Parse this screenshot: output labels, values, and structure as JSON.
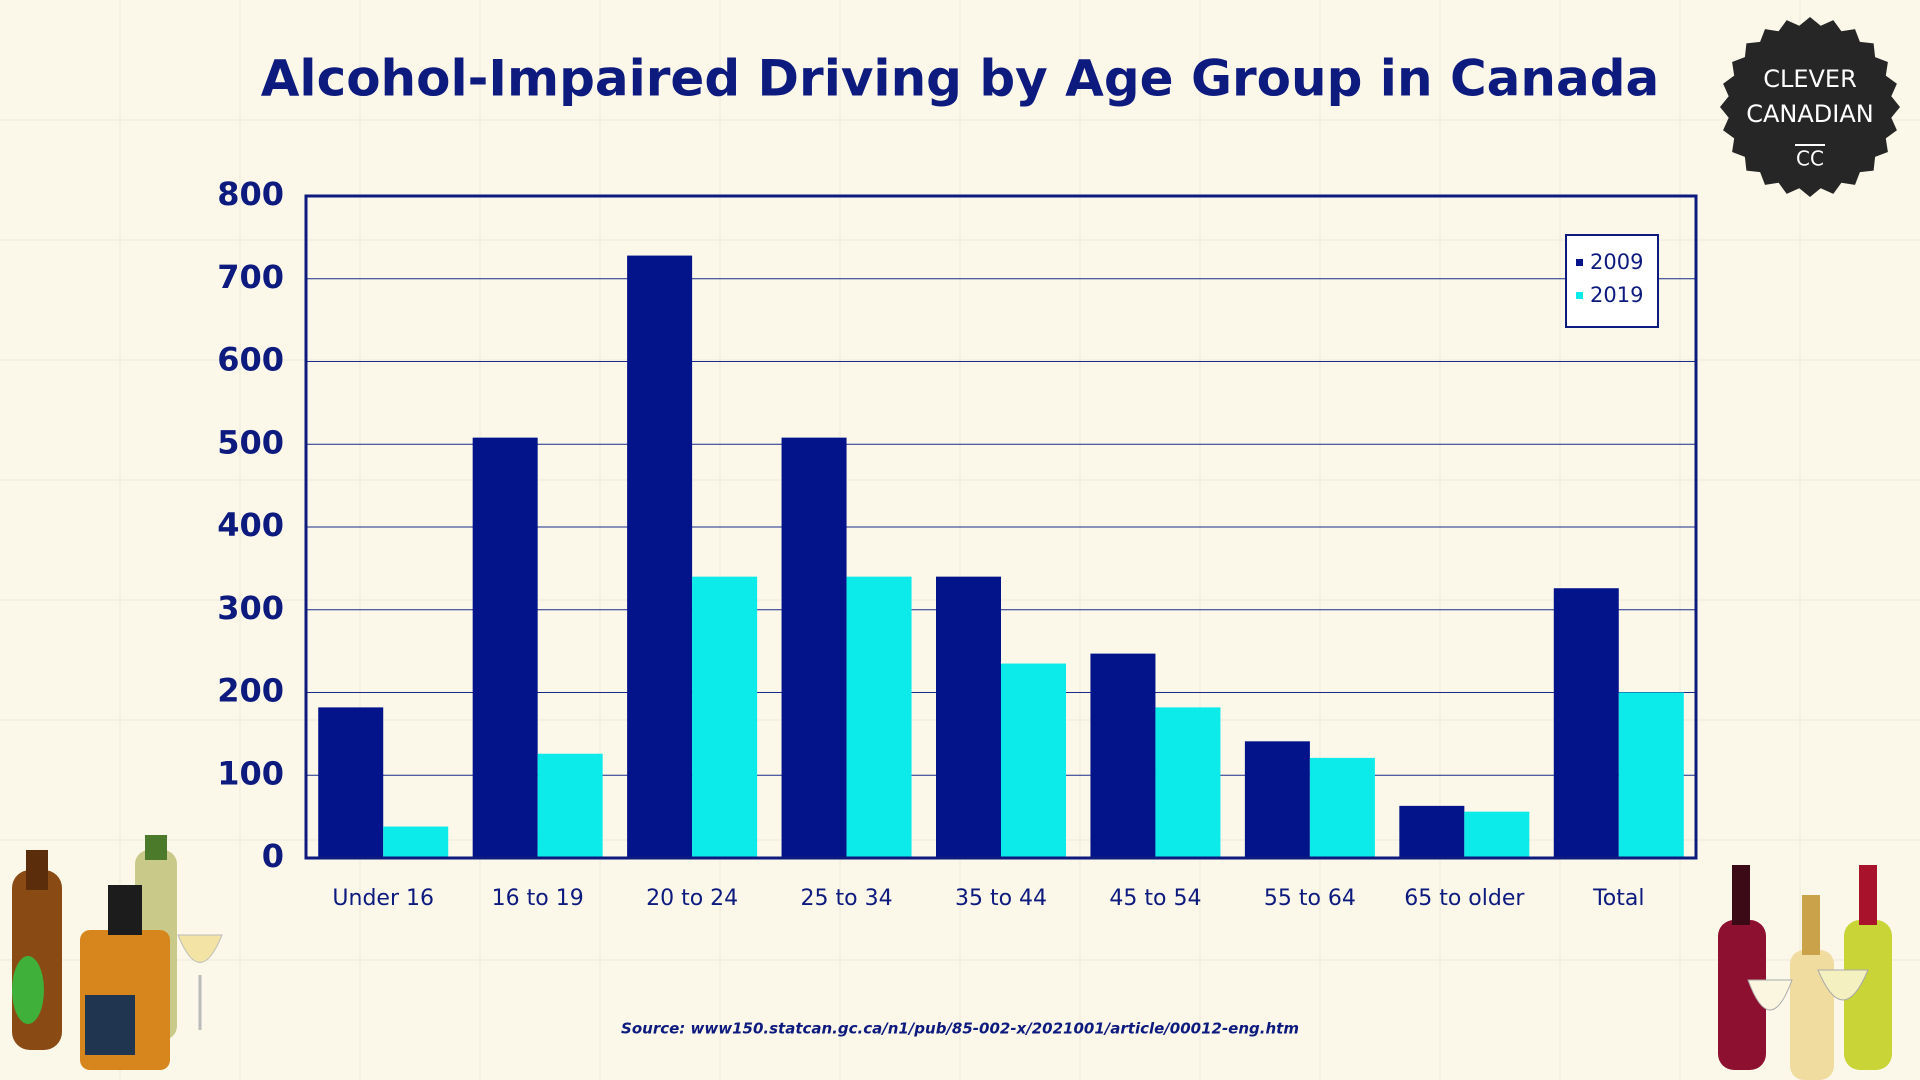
{
  "chart_data": {
    "type": "bar",
    "title": "Alcohol-Impaired Driving by Age Group in Canada",
    "categories": [
      "Under 16",
      "16 to 19",
      "20 to 24",
      "25 to 34",
      "35 to 44",
      "45 to 54",
      "55 to 64",
      "65 to older",
      "Total"
    ],
    "series": [
      {
        "name": "2009",
        "color": "#03148a",
        "values": [
          182,
          508,
          728,
          508,
          340,
          247,
          141,
          63,
          326
        ]
      },
      {
        "name": "2019",
        "color": "#0ceaea",
        "values": [
          38,
          126,
          340,
          340,
          235,
          182,
          121,
          56,
          200
        ]
      }
    ],
    "ylim": [
      0,
      800
    ],
    "yticks": [
      0,
      100,
      200,
      300,
      400,
      500,
      600,
      700,
      800
    ],
    "grid": true,
    "legend": "upper right",
    "source": "Source: www150.statcan.gc.ca/n1/pub/85-002-x/2021001/article/00012-eng.htm"
  },
  "logo": {
    "lines": [
      "CLEVER",
      "CANADIAN",
      "CC"
    ]
  }
}
